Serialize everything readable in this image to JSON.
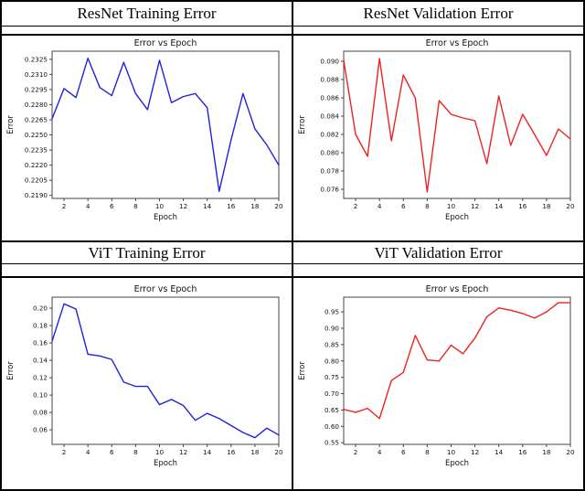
{
  "figure": {
    "background": "#ffffff",
    "border_color": "#000000",
    "accent_blue": "#2222dd",
    "accent_red": "#ee2222"
  },
  "panels": [
    {
      "title": "ResNet Training Error"
    },
    {
      "title": "ResNet Validation Error"
    },
    {
      "title": "ViT Training Error"
    },
    {
      "title": "ViT Validation Error"
    }
  ],
  "chart_data": [
    {
      "type": "line",
      "panel": "ResNet Training Error",
      "title": "Error vs Epoch",
      "xlabel": "Epoch",
      "ylabel": "Error",
      "line_color": "#2222dd",
      "grid": false,
      "legend": null,
      "x": [
        1,
        2,
        3,
        4,
        5,
        6,
        7,
        8,
        9,
        10,
        11,
        12,
        13,
        14,
        15,
        16,
        17,
        18,
        19,
        20
      ],
      "values": [
        0.2266,
        0.2296,
        0.2287,
        0.2326,
        0.2297,
        0.2289,
        0.2322,
        0.2291,
        0.2275,
        0.2324,
        0.2282,
        0.2288,
        0.2291,
        0.2277,
        0.2194,
        0.2245,
        0.2291,
        0.2256,
        0.224,
        0.222
      ],
      "xlim": [
        1,
        20
      ],
      "ylim": [
        0.2187,
        0.2333
      ],
      "xticks": [
        2,
        4,
        6,
        8,
        10,
        12,
        14,
        16,
        18,
        20
      ],
      "xtick_labels": [
        "2",
        "4",
        "6",
        "8",
        "10",
        "12",
        "14",
        "16",
        "18",
        "20"
      ],
      "yticks": [
        0.219,
        0.2205,
        0.222,
        0.2235,
        0.225,
        0.2265,
        0.228,
        0.2295,
        0.231,
        0.2325
      ],
      "ytick_labels": [
        "0.2190",
        "0.2205",
        "0.2220",
        "0.2235",
        "0.2250",
        "0.2265",
        "0.2280",
        "0.2295",
        "0.2310",
        "0.2325"
      ]
    },
    {
      "type": "line",
      "panel": "ResNet Validation Error",
      "title": "Error vs Epoch",
      "xlabel": "Epoch",
      "ylabel": "Error",
      "line_color": "#ee2222",
      "grid": false,
      "legend": null,
      "x": [
        1,
        2,
        3,
        4,
        5,
        6,
        7,
        8,
        9,
        10,
        11,
        12,
        13,
        14,
        15,
        16,
        17,
        18,
        19,
        20
      ],
      "values": [
        0.0901,
        0.082,
        0.0796,
        0.0903,
        0.0813,
        0.0885,
        0.086,
        0.0757,
        0.0857,
        0.0842,
        0.0838,
        0.0835,
        0.0788,
        0.0862,
        0.0808,
        0.0842,
        0.082,
        0.0797,
        0.0826,
        0.0815
      ],
      "xlim": [
        1,
        20
      ],
      "ylim": [
        0.075,
        0.0911
      ],
      "xticks": [
        2,
        4,
        6,
        8,
        10,
        12,
        14,
        16,
        18,
        20
      ],
      "xtick_labels": [
        "2",
        "4",
        "6",
        "8",
        "10",
        "12",
        "14",
        "16",
        "18",
        "20"
      ],
      "yticks": [
        0.076,
        0.078,
        0.08,
        0.082,
        0.084,
        0.086,
        0.088,
        0.09
      ],
      "ytick_labels": [
        "0.076",
        "0.078",
        "0.080",
        "0.082",
        "0.084",
        "0.086",
        "0.088",
        "0.090"
      ]
    },
    {
      "type": "line",
      "panel": "ViT Training Error",
      "title": "Error vs Epoch",
      "xlabel": "Epoch",
      "ylabel": "Error",
      "line_color": "#2222dd",
      "grid": false,
      "legend": null,
      "x": [
        1,
        2,
        3,
        4,
        5,
        6,
        7,
        8,
        9,
        10,
        11,
        12,
        13,
        14,
        15,
        16,
        17,
        18,
        19,
        20
      ],
      "values": [
        0.162,
        0.205,
        0.199,
        0.147,
        0.145,
        0.141,
        0.115,
        0.11,
        0.11,
        0.089,
        0.095,
        0.088,
        0.071,
        0.079,
        0.073,
        0.065,
        0.057,
        0.051,
        0.062,
        0.054
      ],
      "xlim": [
        1,
        20
      ],
      "ylim": [
        0.0433,
        0.2127
      ],
      "xticks": [
        2,
        4,
        6,
        8,
        10,
        12,
        14,
        16,
        18,
        20
      ],
      "xtick_labels": [
        "2",
        "4",
        "6",
        "8",
        "10",
        "12",
        "14",
        "16",
        "18",
        "20"
      ],
      "yticks": [
        0.06,
        0.08,
        0.1,
        0.12,
        0.14,
        0.16,
        0.18,
        0.2
      ],
      "ytick_labels": [
        "0.06",
        "0.08",
        "0.10",
        "0.12",
        "0.14",
        "0.16",
        "0.18",
        "0.20"
      ]
    },
    {
      "type": "line",
      "panel": "ViT Validation Error",
      "title": "Error vs Epoch",
      "xlabel": "Epoch",
      "ylabel": "Error",
      "line_color": "#ee2222",
      "grid": false,
      "legend": null,
      "x": [
        1,
        2,
        3,
        4,
        5,
        6,
        7,
        8,
        9,
        10,
        11,
        12,
        13,
        14,
        15,
        16,
        17,
        18,
        19,
        20
      ],
      "values": [
        0.652,
        0.643,
        0.655,
        0.624,
        0.74,
        0.765,
        0.878,
        0.803,
        0.8,
        0.848,
        0.822,
        0.87,
        0.935,
        0.962,
        0.955,
        0.945,
        0.931,
        0.95,
        0.978,
        0.978
      ],
      "xlim": [
        1,
        20
      ],
      "ylim": [
        0.545,
        0.995
      ],
      "xticks": [
        2,
        4,
        6,
        8,
        10,
        12,
        14,
        16,
        18,
        20
      ],
      "xtick_labels": [
        "2",
        "4",
        "6",
        "8",
        "10",
        "12",
        "14",
        "16",
        "18",
        "20"
      ],
      "yticks": [
        0.55,
        0.6,
        0.65,
        0.7,
        0.75,
        0.8,
        0.85,
        0.9,
        0.95
      ],
      "ytick_labels": [
        "0.55",
        "0.60",
        "0.65",
        "0.70",
        "0.75",
        "0.80",
        "0.85",
        "0.90",
        "0.95"
      ]
    }
  ]
}
